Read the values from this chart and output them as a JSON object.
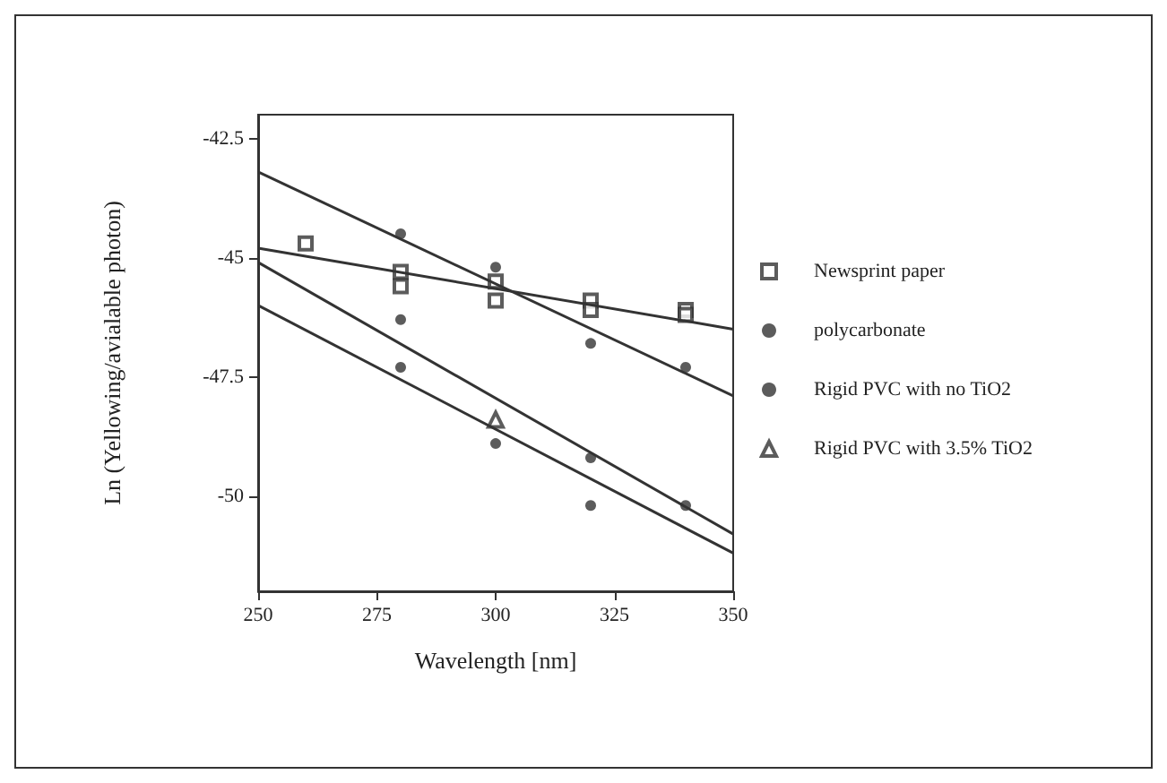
{
  "chart_data": {
    "type": "scatter",
    "xlabel": "Wavelength [nm]",
    "ylabel": "Ln (Yellowing/avialable photon)",
    "xlim": [
      250,
      350
    ],
    "xticks": [
      250,
      275,
      300,
      325,
      350
    ],
    "ylim": [
      -52,
      -42
    ],
    "yticks": [
      {
        "value": -42.5,
        "label": "-42.5"
      },
      -45,
      {
        "value": -47.5,
        "label": "-47.5"
      },
      -50
    ],
    "grid": false,
    "legend": "right",
    "series": [
      {
        "name": "Newsprint paper",
        "type": "scatter",
        "marker": "square",
        "color": "#333333",
        "x": [
          260,
          280,
          280,
          300,
          300,
          320,
          320,
          340,
          340
        ],
        "values": [
          -44.7,
          -45.3,
          -45.6,
          -45.5,
          -45.9,
          -45.9,
          -46.1,
          -46.1,
          -46.2
        ]
      },
      {
        "name": "polycarbonate",
        "type": "scatter",
        "marker": "circle",
        "color": "#333333",
        "x": [
          280,
          300,
          320,
          340
        ],
        "values": [
          -44.5,
          -45.2,
          -46.8,
          -47.3
        ]
      },
      {
        "name": "Rigid PVC with no TiO2",
        "type": "scatter",
        "marker": "circle",
        "color": "#333333",
        "x": [
          280,
          280,
          300,
          320,
          320,
          340
        ],
        "values": [
          -46.3,
          -47.3,
          -48.9,
          -49.2,
          -50.2,
          -50.2
        ]
      },
      {
        "name": "Rigid PVC with 3.5% TiO2",
        "type": "scatter",
        "marker": "triangle",
        "color": "#333333",
        "x": [
          300
        ],
        "values": [
          -48.4
        ]
      },
      {
        "type": "line",
        "color": "#333333",
        "x": [
          250,
          350
        ],
        "values": [
          -44.8,
          -46.5
        ]
      },
      {
        "type": "line",
        "color": "#333333",
        "x": [
          250,
          350
        ],
        "values": [
          -43.2,
          -47.9
        ]
      },
      {
        "type": "line",
        "color": "#333333",
        "x": [
          250,
          350
        ],
        "values": [
          -45.1,
          -50.8
        ]
      },
      {
        "type": "line",
        "color": "#333333",
        "x": [
          250,
          350
        ],
        "values": [
          -46.0,
          -51.2
        ]
      }
    ]
  }
}
